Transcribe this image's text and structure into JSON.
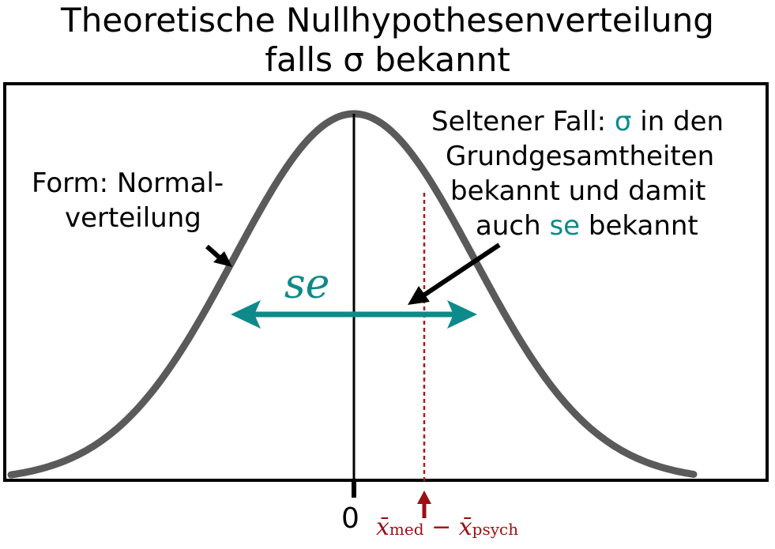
{
  "title": {
    "line1": "Theoretische Nullhypothesenverteilung",
    "line2": "falls σ bekannt"
  },
  "annotations": {
    "form_line1": "Form: Normal-",
    "form_line2": "verteilung",
    "rare_line1_prefix": "Seltener Fall: ",
    "rare_line1_sigma": "σ",
    "rare_line1_suffix": " in den",
    "rare_line2": "Grundgesamtheiten",
    "rare_line3": "bekannt und damit",
    "rare_line4_prefix": "auch ",
    "rare_line4_se": "se",
    "rare_line4_suffix": " bekannt"
  },
  "labels": {
    "se": "se",
    "zero": "0",
    "diff_x1": "x̄",
    "diff_sub1": "med",
    "diff_minus": " − ",
    "diff_x2": "x̄",
    "diff_sub2": "psych"
  },
  "colors": {
    "curve": "#5a5a5a",
    "accent": "#0e8a8a",
    "observed": "#9b1010"
  }
}
